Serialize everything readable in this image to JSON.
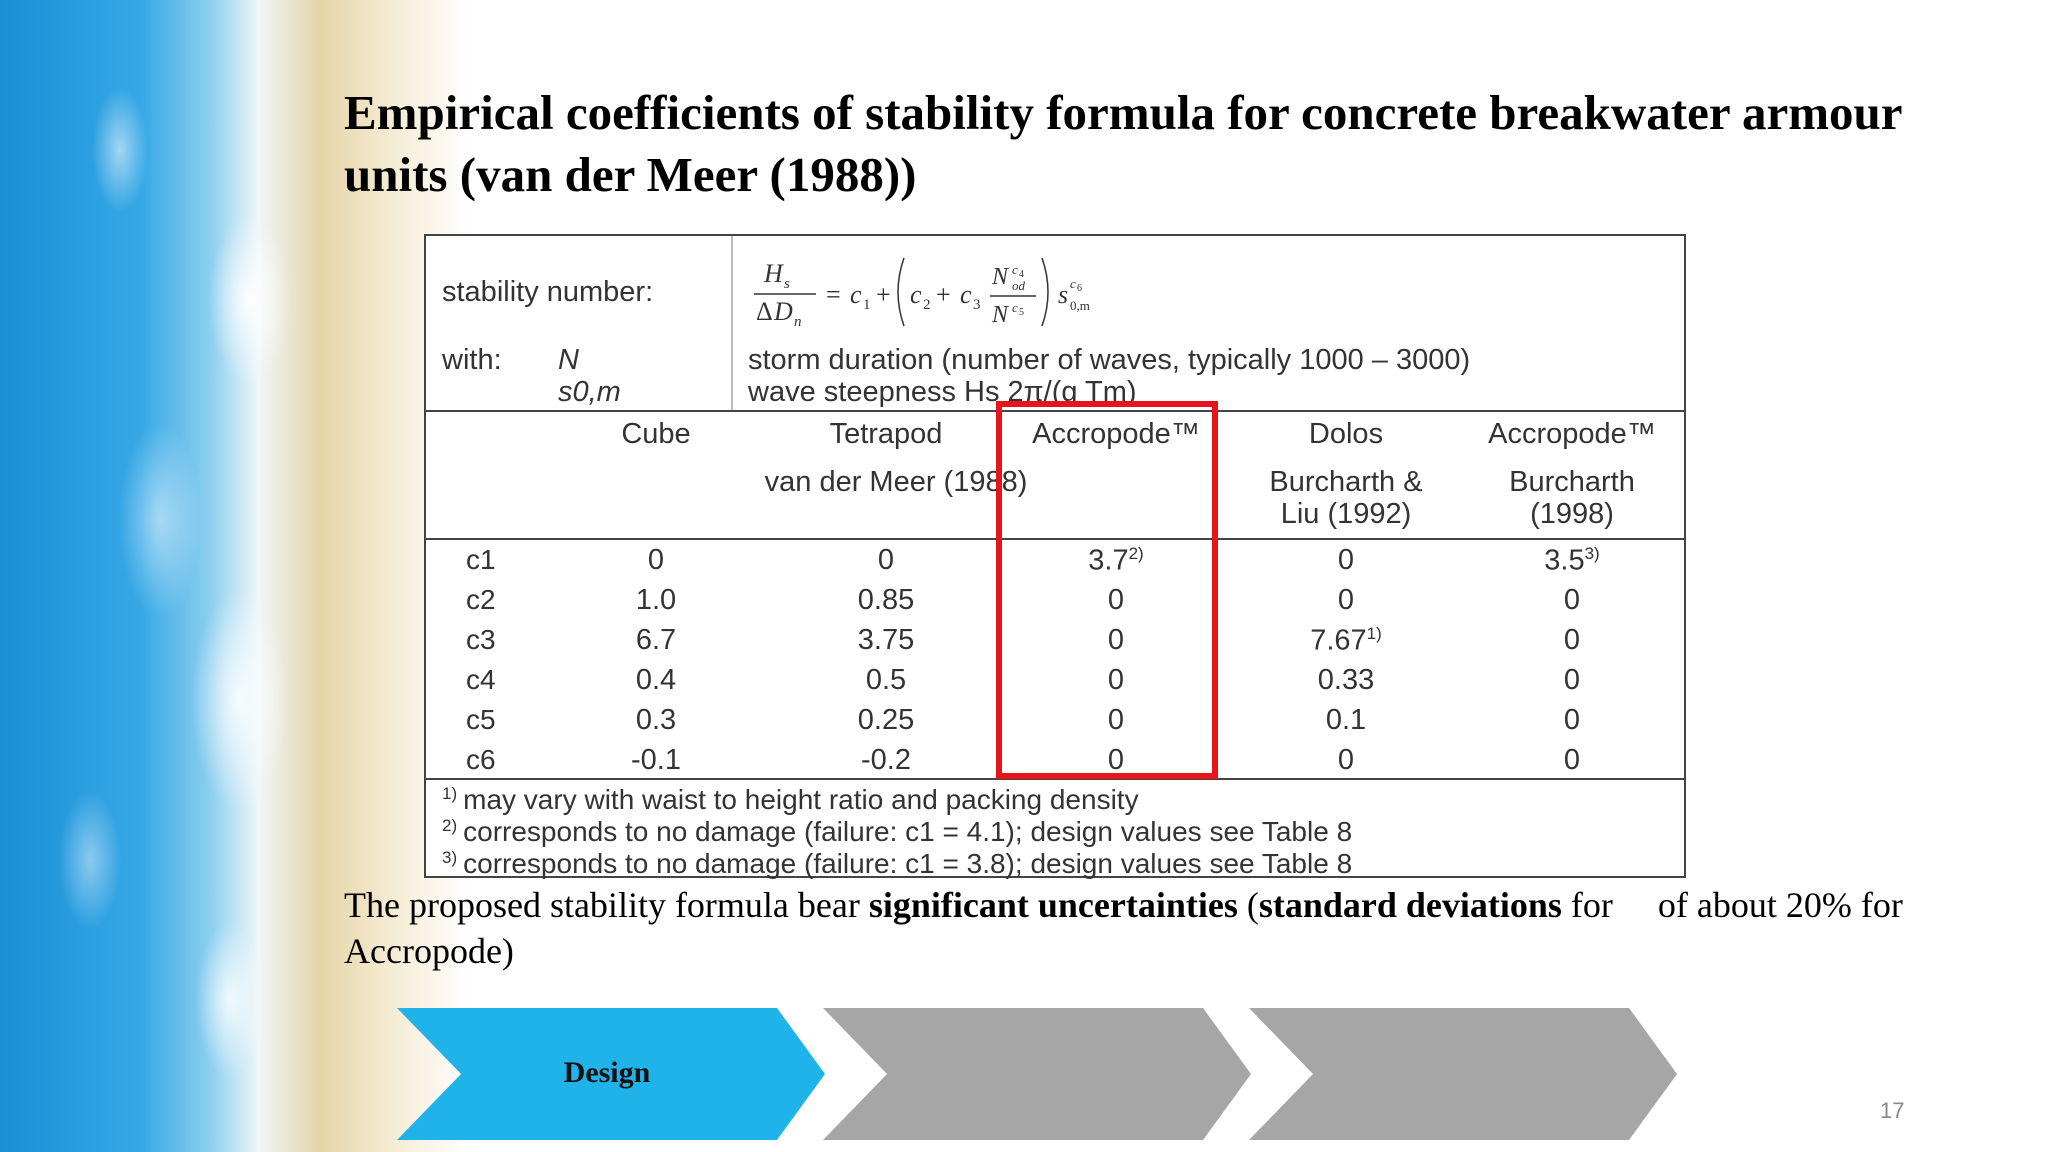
{
  "slide": {
    "title": "Empirical coefficients of stability formula for concrete breakwater armour units (van der Meer (1988))",
    "page_number": "17"
  },
  "table": {
    "stability_label": "stability number:",
    "with_label": "with:",
    "var_n": "N",
    "var_s": "s0,m",
    "desc_n": "storm duration (number of waves, typically 1000 – 3000)",
    "desc_s": "wave steepness Hs 2π/(g Tm)",
    "columns": [
      "Cube",
      "Tetrapod",
      "Accropode™",
      "Dolos",
      "Accropode™"
    ],
    "source_1": "van der Meer (1988)",
    "source_2_line1": "Burcharth &",
    "source_2_line2": "Liu (1992)",
    "source_3_line1": "Burcharth",
    "source_3_line2": "(1998)",
    "rows": [
      {
        "label": "c1",
        "values": [
          "0",
          "0",
          "3.7",
          "0",
          "3.5"
        ],
        "sups": [
          "",
          "",
          "2)",
          "",
          "3)"
        ]
      },
      {
        "label": "c2",
        "values": [
          "1.0",
          "0.85",
          "0",
          "0",
          "0"
        ],
        "sups": [
          "",
          "",
          "",
          "",
          ""
        ]
      },
      {
        "label": "c3",
        "values": [
          "6.7",
          "3.75",
          "0",
          "7.67",
          "0"
        ],
        "sups": [
          "",
          "",
          "",
          "1)",
          ""
        ]
      },
      {
        "label": "c4",
        "values": [
          "0.4",
          "0.5",
          "0",
          "0.33",
          "0"
        ],
        "sups": [
          "",
          "",
          "",
          "",
          ""
        ]
      },
      {
        "label": "c5",
        "values": [
          "0.3",
          "0.25",
          "0",
          "0.1",
          "0"
        ],
        "sups": [
          "",
          "",
          "",
          "",
          ""
        ]
      },
      {
        "label": "c6",
        "values": [
          "-0.1",
          "-0.2",
          "0",
          "0",
          "0"
        ],
        "sups": [
          "",
          "",
          "",
          "",
          ""
        ]
      }
    ],
    "notes": [
      {
        "mark": "1)",
        "text": "may vary with waist to height ratio and packing density"
      },
      {
        "mark": "2)",
        "text": "corresponds to no damage (failure: c1 = 4.1); design values see Table 8"
      },
      {
        "mark": "3)",
        "text": "corresponds to no damage (failure: c1 = 3.8); design values see Table 8"
      }
    ]
  },
  "paragraph": {
    "part1": "The proposed stability formula bear ",
    "bold1": "significant uncertainties",
    "part2": " (",
    "bold2": "standard deviations",
    "part3": " for     of about 20% for Accropode)"
  },
  "process": {
    "steps": [
      "Design",
      "",
      ""
    ],
    "colors": {
      "active": "#1fb3ea",
      "inactive": "#a6a6a6",
      "highlight": "#e8141c"
    }
  }
}
